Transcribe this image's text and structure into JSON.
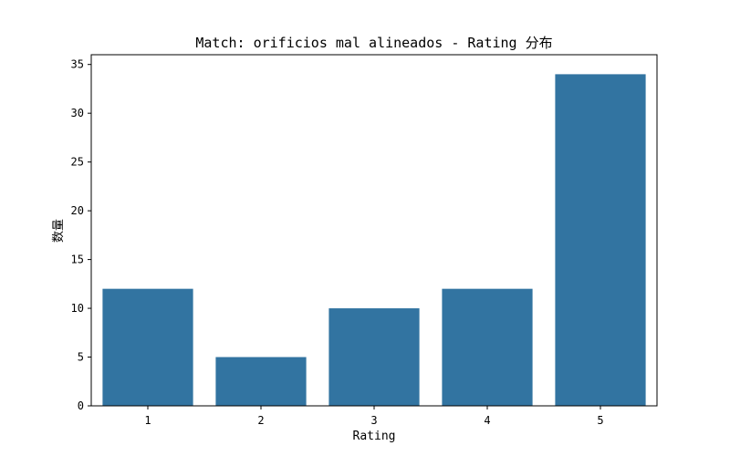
{
  "chart_data": {
    "type": "bar",
    "title": "Match: orificios mal alineados - Rating 分布",
    "xlabel": "Rating",
    "ylabel": "数量",
    "categories": [
      "1",
      "2",
      "3",
      "4",
      "5"
    ],
    "values": [
      12,
      5,
      10,
      12,
      34
    ],
    "ylim": [
      0,
      36
    ],
    "yticks": [
      0,
      5,
      10,
      15,
      20,
      25,
      30,
      35
    ],
    "grid": false,
    "bar_color": "#3274a1"
  }
}
